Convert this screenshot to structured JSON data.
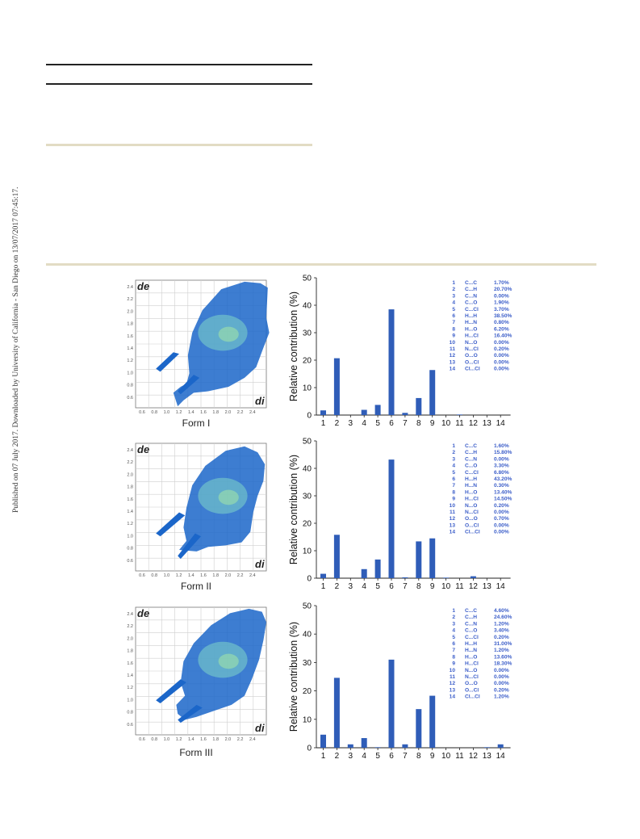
{
  "side_note": "Published on 07 July 2017. Downloaded by University of California - San Diego on 13/07/2017 07:45:17.",
  "colors": {
    "bar": "#2f5db8",
    "legend": "#3c5ec9",
    "fp_dark": "#1b66c9",
    "fp_light": "#7fd6c8",
    "rule_dark": "#222222",
    "rule_beige": "#e2dcc4",
    "grid": "#cfcfcf"
  },
  "fingerprint_axis": {
    "de_label": "de",
    "di_label": "di",
    "de_ticks": [
      "2.4",
      "2.2",
      "2.0",
      "1.8",
      "1.6",
      "1.4",
      "1.2",
      "1.0",
      "0.8",
      "0.6"
    ],
    "di_ticks": [
      "0.6",
      "0.8",
      "1.0",
      "1.2",
      "1.4",
      "1.6",
      "1.8",
      "2.0",
      "2.2",
      "2.4"
    ]
  },
  "fingerprints": [
    {
      "label": "Form I"
    },
    {
      "label": "Form II"
    },
    {
      "label": "Form III"
    }
  ],
  "chart_data": [
    {
      "type": "bar",
      "categories": [
        "1",
        "2",
        "3",
        "4",
        "5",
        "6",
        "7",
        "8",
        "9",
        "10",
        "11",
        "12",
        "13",
        "14"
      ],
      "values": [
        1.7,
        20.7,
        0.0,
        1.9,
        3.7,
        38.5,
        0.8,
        6.2,
        16.4,
        0.0,
        0.2,
        0.0,
        0.0,
        0.0
      ],
      "ylabel": "Relative contribution (%)",
      "ylim": [
        0,
        50
      ],
      "yticks": [
        "0",
        "10",
        "20",
        "30",
        "40",
        "50"
      ],
      "legend": [
        {
          "n": "1",
          "contact": "C...C",
          "pct": "1.70%"
        },
        {
          "n": "2",
          "contact": "C...H",
          "pct": "20.70%"
        },
        {
          "n": "3",
          "contact": "C...N",
          "pct": "0.00%"
        },
        {
          "n": "4",
          "contact": "C...O",
          "pct": "1.90%"
        },
        {
          "n": "5",
          "contact": "C...Cl",
          "pct": "3.70%"
        },
        {
          "n": "6",
          "contact": "H...H",
          "pct": "38.50%"
        },
        {
          "n": "7",
          "contact": "H...N",
          "pct": "0.80%"
        },
        {
          "n": "8",
          "contact": "H...O",
          "pct": "6.20%"
        },
        {
          "n": "9",
          "contact": "H...Cl",
          "pct": "16.40%"
        },
        {
          "n": "10",
          "contact": "N...O",
          "pct": "0.00%"
        },
        {
          "n": "11",
          "contact": "N...Cl",
          "pct": "0.20%"
        },
        {
          "n": "12",
          "contact": "O...O",
          "pct": "0.00%"
        },
        {
          "n": "13",
          "contact": "O...Cl",
          "pct": "0.00%"
        },
        {
          "n": "14",
          "contact": "Cl...Cl",
          "pct": "0.00%"
        }
      ]
    },
    {
      "type": "bar",
      "categories": [
        "1",
        "2",
        "3",
        "4",
        "5",
        "6",
        "7",
        "8",
        "9",
        "10",
        "11",
        "12",
        "13",
        "14"
      ],
      "values": [
        1.6,
        15.8,
        0.0,
        3.3,
        6.8,
        43.2,
        0.3,
        13.4,
        14.5,
        0.2,
        0.0,
        0.7,
        0.0,
        0.0
      ],
      "ylabel": "Relative contribution (%)",
      "ylim": [
        0,
        50
      ],
      "yticks": [
        "0",
        "10",
        "20",
        "30",
        "40",
        "50"
      ],
      "legend": [
        {
          "n": "1",
          "contact": "C...C",
          "pct": "1.60%"
        },
        {
          "n": "2",
          "contact": "C...H",
          "pct": "15.80%"
        },
        {
          "n": "3",
          "contact": "C...N",
          "pct": "0.00%"
        },
        {
          "n": "4",
          "contact": "C...O",
          "pct": "3.30%"
        },
        {
          "n": "5",
          "contact": "C...Cl",
          "pct": "6.80%"
        },
        {
          "n": "6",
          "contact": "H...H",
          "pct": "43.20%"
        },
        {
          "n": "7",
          "contact": "H...N",
          "pct": "0.30%"
        },
        {
          "n": "8",
          "contact": "H...O",
          "pct": "13.40%"
        },
        {
          "n": "9",
          "contact": "H...Cl",
          "pct": "14.50%"
        },
        {
          "n": "10",
          "contact": "N...O",
          "pct": "0.20%"
        },
        {
          "n": "11",
          "contact": "N...Cl",
          "pct": "0.00%"
        },
        {
          "n": "12",
          "contact": "O...O",
          "pct": "0.70%"
        },
        {
          "n": "13",
          "contact": "O...Cl",
          "pct": "0.00%"
        },
        {
          "n": "14",
          "contact": "Cl...Cl",
          "pct": "0.00%"
        }
      ]
    },
    {
      "type": "bar",
      "categories": [
        "1",
        "2",
        "3",
        "4",
        "5",
        "6",
        "7",
        "8",
        "9",
        "10",
        "11",
        "12",
        "13",
        "14"
      ],
      "values": [
        4.6,
        24.6,
        1.2,
        3.4,
        0.2,
        31.0,
        1.2,
        13.6,
        18.3,
        0.0,
        0.0,
        0.0,
        0.2,
        1.2
      ],
      "ylabel": "Relative contribution (%)",
      "ylim": [
        0,
        50
      ],
      "yticks": [
        "0",
        "10",
        "20",
        "30",
        "40",
        "50"
      ],
      "legend": [
        {
          "n": "1",
          "contact": "C...C",
          "pct": "4.60%"
        },
        {
          "n": "2",
          "contact": "C...H",
          "pct": "24.60%"
        },
        {
          "n": "3",
          "contact": "C...N",
          "pct": "1.20%"
        },
        {
          "n": "4",
          "contact": "C...O",
          "pct": "3.40%"
        },
        {
          "n": "5",
          "contact": "C...Cl",
          "pct": "0.20%"
        },
        {
          "n": "6",
          "contact": "H...H",
          "pct": "31.00%"
        },
        {
          "n": "7",
          "contact": "H...N",
          "pct": "1.20%"
        },
        {
          "n": "8",
          "contact": "H...O",
          "pct": "13.60%"
        },
        {
          "n": "9",
          "contact": "H...Cl",
          "pct": "18.30%"
        },
        {
          "n": "10",
          "contact": "N...O",
          "pct": "0.00%"
        },
        {
          "n": "11",
          "contact": "N...Cl",
          "pct": "0.00%"
        },
        {
          "n": "12",
          "contact": "O...O",
          "pct": "0.00%"
        },
        {
          "n": "13",
          "contact": "O...Cl",
          "pct": "0.20%"
        },
        {
          "n": "14",
          "contact": "Cl...Cl",
          "pct": "1.20%"
        }
      ]
    }
  ]
}
